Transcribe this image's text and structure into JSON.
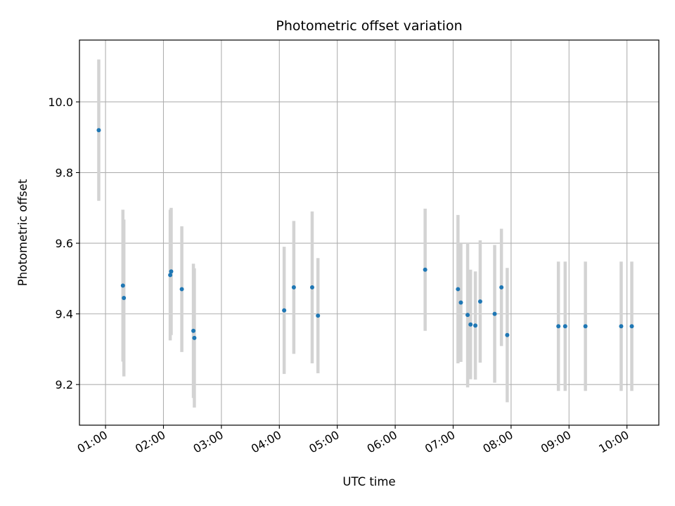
{
  "chart_data": {
    "type": "scatter",
    "title": "Photometric offset variation",
    "xlabel": "UTC time",
    "ylabel": "Photometric offset",
    "grid": true,
    "xlim": [
      "00:33",
      "10:33"
    ],
    "ylim": [
      9.085,
      10.175
    ],
    "xticks": [
      "01:00",
      "02:00",
      "03:00",
      "04:00",
      "05:00",
      "06:00",
      "07:00",
      "08:00",
      "09:00",
      "10:00"
    ],
    "yticks": [
      "9.2",
      "9.4",
      "9.6",
      "9.8",
      "10.0"
    ],
    "colors": {
      "point": "#1f77b4",
      "errorbar": "#d3d3d3",
      "grid": "#b0b0b0"
    },
    "points": [
      {
        "x": "00:53",
        "y": 9.92,
        "err": 0.2
      },
      {
        "x": "01:18",
        "y": 9.48,
        "err": 0.215
      },
      {
        "x": "01:19",
        "y": 9.445,
        "err": 0.222
      },
      {
        "x": "02:07",
        "y": 9.51,
        "err": 0.185
      },
      {
        "x": "02:08",
        "y": 9.52,
        "err": 0.18
      },
      {
        "x": "02:19",
        "y": 9.47,
        "err": 0.178
      },
      {
        "x": "02:31",
        "y": 9.352,
        "err": 0.19
      },
      {
        "x": "02:32",
        "y": 9.332,
        "err": 0.197
      },
      {
        "x": "04:05",
        "y": 9.41,
        "err": 0.18
      },
      {
        "x": "04:15",
        "y": 9.475,
        "err": 0.188
      },
      {
        "x": "04:34",
        "y": 9.475,
        "err": 0.215
      },
      {
        "x": "04:40",
        "y": 9.395,
        "err": 0.163
      },
      {
        "x": "06:31",
        "y": 9.525,
        "err": 0.173
      },
      {
        "x": "07:05",
        "y": 9.47,
        "err": 0.21
      },
      {
        "x": "07:08",
        "y": 9.432,
        "err": 0.168
      },
      {
        "x": "07:15",
        "y": 9.397,
        "err": 0.205
      },
      {
        "x": "07:18",
        "y": 9.37,
        "err": 0.155
      },
      {
        "x": "07:23",
        "y": 9.367,
        "err": 0.153
      },
      {
        "x": "07:28",
        "y": 9.435,
        "err": 0.173
      },
      {
        "x": "07:43",
        "y": 9.4,
        "err": 0.195
      },
      {
        "x": "07:50",
        "y": 9.475,
        "err": 0.166
      },
      {
        "x": "07:56",
        "y": 9.34,
        "err": 0.19
      },
      {
        "x": "08:49",
        "y": 9.365,
        "err": 0.183
      },
      {
        "x": "08:56",
        "y": 9.365,
        "err": 0.183
      },
      {
        "x": "09:17",
        "y": 9.365,
        "err": 0.183
      },
      {
        "x": "09:54",
        "y": 9.365,
        "err": 0.183
      },
      {
        "x": "10:05",
        "y": 9.365,
        "err": 0.183
      }
    ]
  }
}
